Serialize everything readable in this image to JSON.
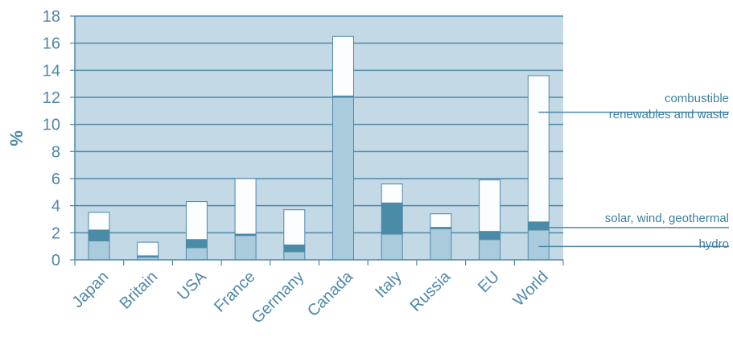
{
  "chart_data": {
    "type": "bar",
    "stacked": true,
    "ylabel": "%",
    "ylim": [
      0,
      18
    ],
    "yticks": [
      0,
      2,
      4,
      6,
      8,
      10,
      12,
      14,
      16,
      18
    ],
    "grid": true,
    "categories": [
      "Japan",
      "Britain",
      "USA",
      "France",
      "Germany",
      "Canada",
      "Italy",
      "Russia",
      "EU",
      "World"
    ],
    "series": [
      {
        "name": "hydro",
        "values": [
          1.4,
          0.2,
          0.9,
          1.8,
          0.6,
          12.0,
          1.9,
          2.3,
          1.5,
          2.2
        ]
      },
      {
        "name": "solar, wind, geothermal",
        "values": [
          0.8,
          0.1,
          0.6,
          0.1,
          0.5,
          0.1,
          2.3,
          0.1,
          0.6,
          0.6
        ]
      },
      {
        "name": "combustible renewables and waste",
        "values": [
          1.3,
          1.0,
          2.8,
          4.1,
          2.6,
          4.4,
          1.4,
          1.0,
          3.8,
          10.8
        ]
      }
    ],
    "legend": [
      {
        "series": "combustible renewables and waste",
        "lines": [
          "combustible",
          "renewables and waste"
        ]
      },
      {
        "series": "solar, wind, geothermal",
        "lines": [
          "solar, wind, geothermal"
        ]
      },
      {
        "series": "hydro",
        "lines": [
          "hydro"
        ]
      }
    ],
    "legend_placement": "right",
    "colors": {
      "plot_bg": "#c3d9e6",
      "grid": "#4f88a8",
      "hydro": "#aacbdc",
      "solar": "#4a8ca8",
      "combustible": "#fbfdfe",
      "text": "#4f88a8"
    }
  }
}
